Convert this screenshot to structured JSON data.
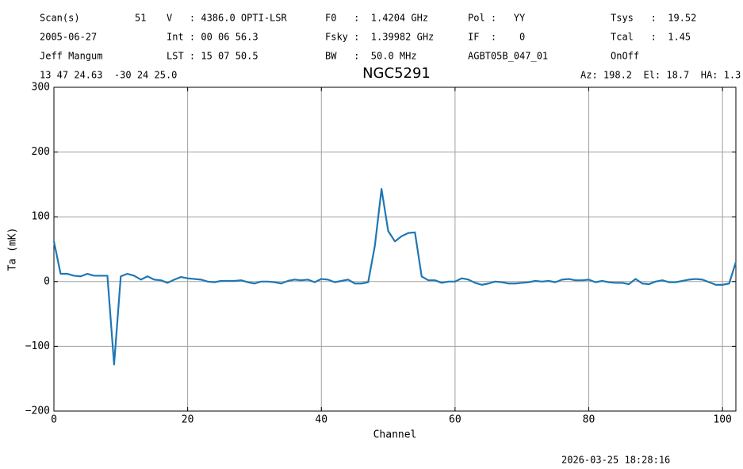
{
  "chart_data": {
    "type": "line",
    "title": "NGC5291",
    "header": [
      "Scan(s)",
      "51",
      "V   : 4386.0 OPTI-LSR",
      "F0   :  1.4204 GHz",
      "Pol :   YY",
      "Tsys   :  19.52",
      "2005-06-27",
      "Int : 00 06 56.3",
      "Fsky :  1.39982 GHz",
      "IF  :    0",
      "Tcal   :  1.45",
      "Jeff Mangum",
      "LST : 15 07 50.5",
      "BW   :  50.0 MHz",
      "AGBT05B_047_01",
      "OnOff",
      "13 47 24.63  -30 24 25.0",
      "Az: 198.2  El: 18.7  HA: 1.3"
    ],
    "timestamp": "2026-03-25 18:28:16",
    "xlabel": "Channel",
    "ylabel": "Ta (mK)",
    "x": [
      0,
      1,
      2,
      3,
      4,
      5,
      6,
      7,
      8,
      9,
      10,
      11,
      12,
      13,
      14,
      15,
      16,
      17,
      18,
      19,
      20,
      21,
      22,
      23,
      24,
      25,
      26,
      27,
      28,
      29,
      30,
      31,
      32,
      33,
      34,
      35,
      36,
      37,
      38,
      39,
      40,
      41,
      42,
      43,
      44,
      45,
      46,
      47,
      48,
      49,
      50,
      51,
      52,
      53,
      54,
      55,
      56,
      57,
      58,
      59,
      60,
      61,
      62,
      63,
      64,
      65,
      66,
      67,
      68,
      69,
      70,
      71,
      72,
      73,
      74,
      75,
      76,
      77,
      78,
      79,
      80,
      81,
      82,
      83,
      84,
      85,
      86,
      87,
      88,
      89,
      90,
      91,
      92,
      93,
      94,
      95,
      96,
      97,
      98,
      99,
      100,
      101,
      102
    ],
    "series": [
      {
        "name": "NGC5291",
        "color": "#1f77b4",
        "values": [
          62,
          12,
          12,
          9,
          8,
          12,
          9,
          9,
          9,
          -128,
          8,
          12,
          9,
          3,
          8,
          3,
          2,
          -2,
          3,
          7,
          5,
          4,
          3,
          0,
          -1,
          1,
          1,
          1,
          2,
          -1,
          -3,
          0,
          0,
          -1,
          -3,
          1,
          3,
          2,
          3,
          -1,
          4,
          3,
          -1,
          1,
          3,
          -3,
          -3,
          -1,
          55,
          143,
          78,
          62,
          70,
          75,
          76,
          8,
          2,
          2,
          -2,
          0,
          0,
          5,
          3,
          -2,
          -5,
          -3,
          0,
          -1,
          -3,
          -3,
          -2,
          -1,
          1,
          0,
          1,
          -1,
          3,
          4,
          2,
          2,
          3,
          -1,
          1,
          -1,
          -2,
          -2,
          -4,
          4,
          -3,
          -4,
          0,
          2,
          -1,
          -1,
          1,
          3,
          4,
          3,
          -1,
          -5,
          -5,
          -3,
          30
        ]
      }
    ],
    "xlim": [
      0,
      102
    ],
    "ylim": [
      -200,
      300
    ],
    "xticks": [
      0,
      20,
      40,
      60,
      80,
      100
    ],
    "yticks": [
      {
        "value": -200,
        "label": "−200"
      },
      {
        "value": -100,
        "label": "−100"
      },
      0,
      100,
      200,
      300
    ],
    "grid": true
  }
}
